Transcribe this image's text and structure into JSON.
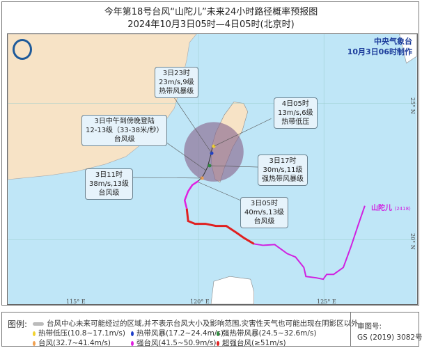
{
  "title": {
    "line1": "今年第18号台风“山陀儿”未来24小时路径概率预报图",
    "line2": "2024年10月3日05时—4日05时(北京时)"
  },
  "agency": {
    "name": "中央气象台",
    "issued": "10月3日06时制作"
  },
  "typhoon_label": "山陀儿",
  "typhoon_number": "(2418)",
  "callouts": [
    {
      "l1": "3日23时",
      "l2": "23m/s,9级",
      "l3": "热带风暴级"
    },
    {
      "l1": "4日05时",
      "l2": "13m/s,6级",
      "l3": "热带低压"
    },
    {
      "l1": "3日中午到傍晚登陆",
      "l2": "12-13级（33-38米/秒）",
      "l3": "台风级"
    },
    {
      "l1": "3日17时",
      "l2": "30m/s,11级",
      "l3": "强热带风暴级"
    },
    {
      "l1": "3日11时",
      "l2": "38m/s,13级",
      "l3": "台风级"
    },
    {
      "l1": "3日05时",
      "l2": "40m/s,13级",
      "l3": "台风级"
    }
  ],
  "axes": {
    "lon": [
      "115° E",
      "120° E",
      "125° E"
    ],
    "lat": [
      "25° N",
      "20° N"
    ]
  },
  "legend": {
    "title": "图例:",
    "cone": "台风中心未来可能经过的区域,并不表示台风大小及影响范围,灾害性天气也可能出现在阴影区以外",
    "items": [
      {
        "label": "热带低压(10.8~17.1m/s)",
        "color": "#f2d22e"
      },
      {
        "label": "热带风暴(17.2~24.4m/s)",
        "color": "#1e3fc8"
      },
      {
        "label": "强热带风暴(24.5~32.6m/s)",
        "color": "#2e8b3e"
      },
      {
        "label": "台风(32.7~41.4m/s)",
        "color": "#f0a050"
      },
      {
        "label": "强台风(41.5~50.9m/s)",
        "color": "#e020e0"
      },
      {
        "label": "超强台风(≥51m/s)",
        "color": "#e02020"
      }
    ],
    "review_label": "审图号:",
    "review_no": "GS (2019) 3082号"
  }
}
